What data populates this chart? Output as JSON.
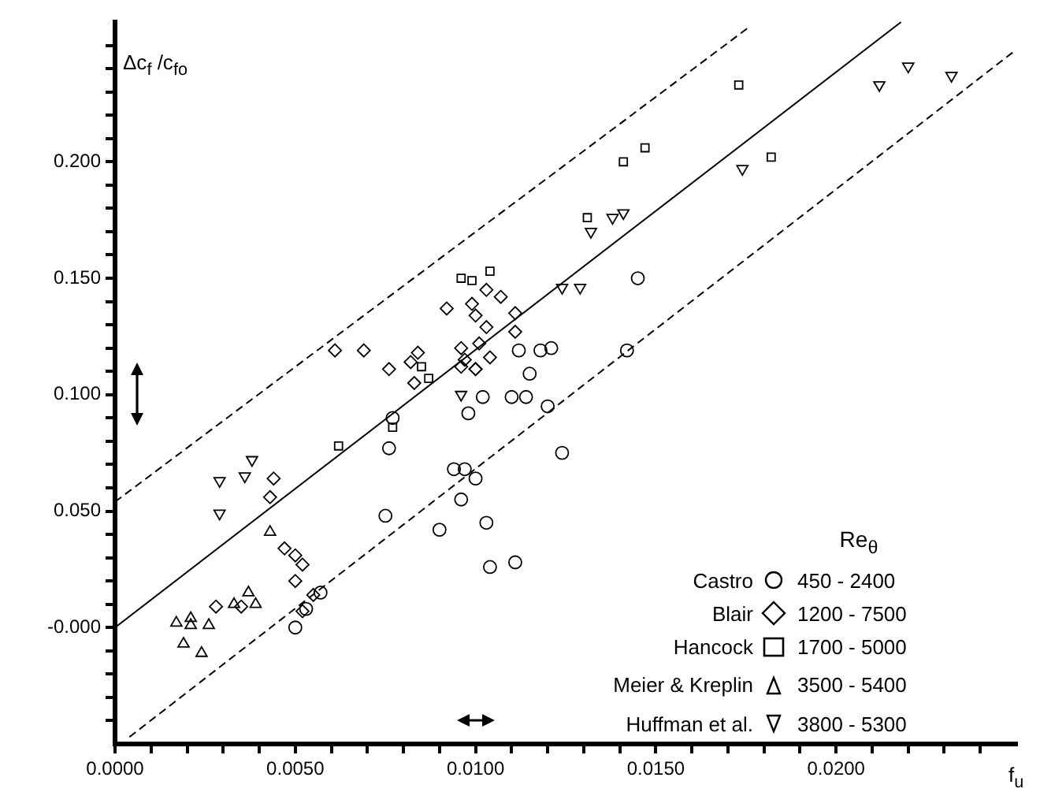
{
  "chart_data": {
    "type": "scatter",
    "xlabel": "f$_{u}$",
    "ylabel": "Δc$_{f}$ /c$_{fo}$",
    "legend_title": "Re$_{θ}$",
    "legend": "bottom right",
    "grid": false,
    "annotations": [
      "450 - 2400",
      "1200 - 7500",
      "1700 - 5000",
      "3500 - 5400",
      "3800 - 5300"
    ],
    "xlim": [
      0,
      0.025
    ],
    "ylim": [
      -0.05,
      0.26
    ],
    "xticks": [
      {
        "value": 0,
        "label": "0.0000"
      },
      {
        "value": 0.001,
        "label": null
      },
      {
        "value": 0.002,
        "label": null
      },
      {
        "value": 0.003,
        "label": null
      },
      {
        "value": 0.004,
        "label": null
      },
      {
        "value": 0.005,
        "label": "0.0050"
      },
      {
        "value": 0.006,
        "label": null
      },
      {
        "value": 0.007,
        "label": null
      },
      {
        "value": 0.008,
        "label": null
      },
      {
        "value": 0.009,
        "label": null
      },
      {
        "value": 0.01,
        "label": "0.0100"
      },
      {
        "value": 0.011,
        "label": null
      },
      {
        "value": 0.012,
        "label": null
      },
      {
        "value": 0.013,
        "label": null
      },
      {
        "value": 0.014,
        "label": null
      },
      {
        "value": 0.015,
        "label": "0.0150"
      },
      {
        "value": 0.016,
        "label": null
      },
      {
        "value": 0.017,
        "label": null
      },
      {
        "value": 0.018,
        "label": null
      },
      {
        "value": 0.019,
        "label": null
      },
      {
        "value": 0.02,
        "label": "0.0200"
      },
      {
        "value": 0.021,
        "label": null
      },
      {
        "value": 0.022,
        "label": null
      },
      {
        "value": 0.023,
        "label": null
      },
      {
        "value": 0.024,
        "label": null
      }
    ],
    "yticks": [
      {
        "value": -0.04,
        "label": null
      },
      {
        "value": -0.03,
        "label": null
      },
      {
        "value": -0.02,
        "label": null
      },
      {
        "value": -0.01,
        "label": null
      },
      {
        "value": 0,
        "label": "-0.000"
      },
      {
        "value": 0.01,
        "label": null
      },
      {
        "value": 0.02,
        "label": null
      },
      {
        "value": 0.03,
        "label": null
      },
      {
        "value": 0.04,
        "label": null
      },
      {
        "value": 0.05,
        "label": "0.050"
      },
      {
        "value": 0.06,
        "label": null
      },
      {
        "value": 0.07,
        "label": null
      },
      {
        "value": 0.08,
        "label": null
      },
      {
        "value": 0.09,
        "label": null
      },
      {
        "value": 0.1,
        "label": "0.100"
      },
      {
        "value": 0.11,
        "label": null
      },
      {
        "value": 0.12,
        "label": null
      },
      {
        "value": 0.13,
        "label": null
      },
      {
        "value": 0.14,
        "label": null
      },
      {
        "value": 0.15,
        "label": "0.150"
      },
      {
        "value": 0.16,
        "label": null
      },
      {
        "value": 0.17,
        "label": null
      },
      {
        "value": 0.18,
        "label": null
      },
      {
        "value": 0.19,
        "label": null
      },
      {
        "value": 0.2,
        "label": "0.200"
      },
      {
        "value": 0.21,
        "label": null
      },
      {
        "value": 0.22,
        "label": null
      },
      {
        "value": 0.23,
        "label": null
      },
      {
        "value": 0.24,
        "label": null
      },
      {
        "value": 0.25,
        "label": null
      }
    ],
    "series": [
      {
        "name": "Castro",
        "marker": "circle",
        "color": "#000000",
        "x": [
          0.0076,
          0.0077,
          0.0075,
          0.009,
          0.0094,
          0.0097,
          0.0096,
          0.0098,
          0.0102,
          0.01,
          0.0103,
          0.0104,
          0.0111,
          0.011,
          0.0114,
          0.0115,
          0.0112,
          0.0118,
          0.0121,
          0.0124,
          0.012,
          0.0142,
          0.0145,
          0.005,
          0.0053,
          0.0057
        ],
        "values": [
          0.077,
          0.09,
          0.048,
          0.042,
          0.068,
          0.068,
          0.055,
          0.092,
          0.099,
          0.064,
          0.045,
          0.026,
          0.028,
          0.099,
          0.099,
          0.109,
          0.119,
          0.119,
          0.12,
          0.075,
          0.095,
          0.119,
          0.15,
          0.0,
          0.008,
          0.015
        ]
      },
      {
        "name": "Blair",
        "marker": "diamond",
        "color": "#000000",
        "x": [
          0.0092,
          0.0099,
          0.01,
          0.0103,
          0.0103,
          0.0107,
          0.0111,
          0.0111,
          0.0101,
          0.0096,
          0.0097,
          0.01,
          0.0104,
          0.0082,
          0.0084,
          0.0076,
          0.0061,
          0.0069,
          0.0043,
          0.0044,
          0.0047,
          0.005,
          0.0052,
          0.0052,
          0.0055,
          0.0028,
          0.0035,
          0.005,
          0.0083,
          0.0096,
          0.01
        ],
        "values": [
          0.137,
          0.139,
          0.134,
          0.145,
          0.129,
          0.142,
          0.135,
          0.127,
          0.122,
          0.12,
          0.115,
          0.111,
          0.116,
          0.114,
          0.118,
          0.111,
          0.119,
          0.119,
          0.056,
          0.064,
          0.034,
          0.02,
          0.027,
          0.007,
          0.014,
          0.009,
          0.009,
          0.031,
          0.105,
          0.112,
          0.111
        ]
      },
      {
        "name": "Hancock",
        "marker": "square",
        "color": "#000000",
        "x": [
          0.0062,
          0.0077,
          0.0096,
          0.0099,
          0.0104,
          0.0087,
          0.0085,
          0.0173,
          0.0147,
          0.0141,
          0.0182,
          0.0131
        ],
        "values": [
          0.078,
          0.086,
          0.15,
          0.149,
          0.153,
          0.107,
          0.112,
          0.233,
          0.206,
          0.2,
          0.202,
          0.176
        ]
      },
      {
        "name": "Meier & Kreplin",
        "marker": "triangle",
        "color": "#000000",
        "x": [
          0.0017,
          0.0019,
          0.0021,
          0.0021,
          0.0024,
          0.0026,
          0.0033,
          0.0037,
          0.0039,
          0.0043
        ],
        "values": [
          0.002,
          -0.007,
          0.004,
          0.001,
          -0.011,
          0.001,
          0.01,
          0.015,
          0.01,
          0.041
        ]
      },
      {
        "name": "Huffman et al.",
        "marker": "triangle-down",
        "color": "#000000",
        "x": [
          0.0029,
          0.0029,
          0.0036,
          0.0038,
          0.0096,
          0.0132,
          0.0138,
          0.0141,
          0.0174,
          0.0212,
          0.022,
          0.0232,
          0.0124,
          0.0129
        ],
        "values": [
          0.063,
          0.049,
          0.065,
          0.072,
          0.1,
          0.17,
          0.176,
          0.178,
          0.197,
          0.233,
          0.241,
          0.237,
          0.146,
          0.146
        ]
      },
      {
        "type": "line",
        "line_style": "solid",
        "color": "#000000",
        "x": [
          0,
          0.0218
        ],
        "values": [
          0,
          0.26
        ]
      },
      {
        "type": "line",
        "line_style": "dashed",
        "color": "#000000",
        "x": [
          0,
          0.0176
        ],
        "values": [
          0.054,
          0.258
        ]
      },
      {
        "type": "line",
        "line_style": "dashed",
        "color": "#000000",
        "x": [
          0.0004,
          0.0249
        ],
        "values": [
          -0.047,
          0.247
        ]
      }
    ]
  }
}
